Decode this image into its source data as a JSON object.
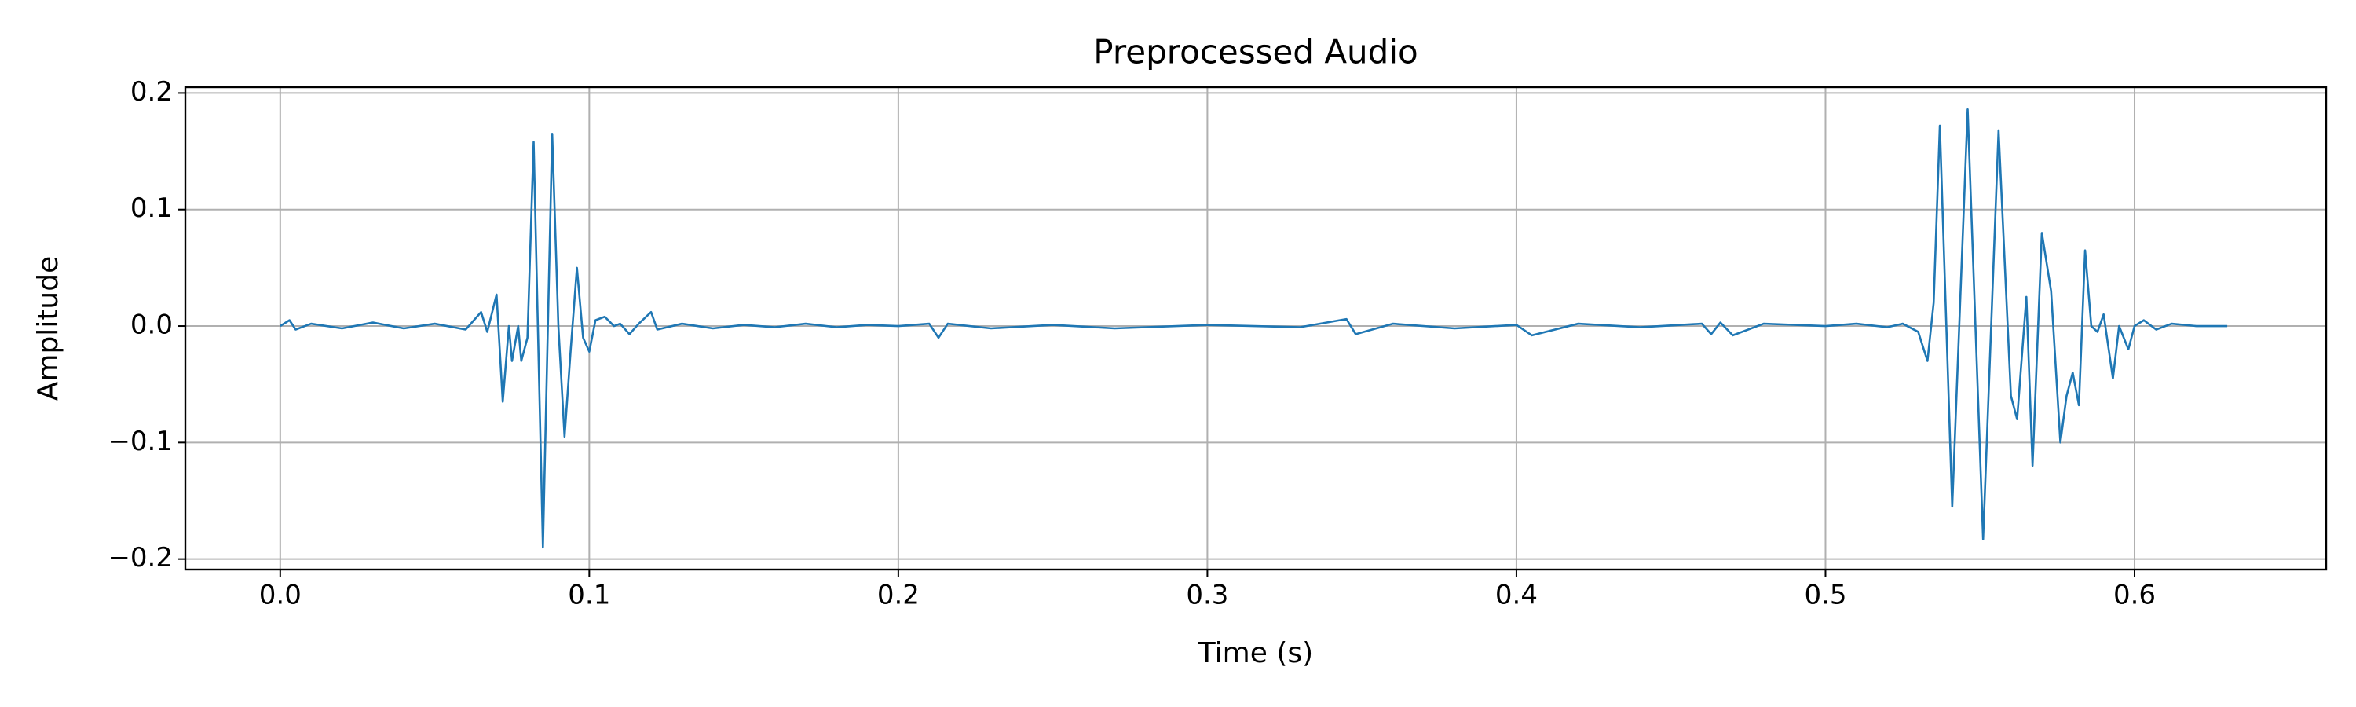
{
  "chart_data": {
    "type": "line",
    "title": "Preprocessed Audio",
    "xlabel": "Time (s)",
    "ylabel": "Amplitude",
    "color": "#1f77b4",
    "grid": true,
    "xlim": [
      -0.0307,
      0.662
    ],
    "ylim": [
      -0.209,
      0.205
    ],
    "xticks": [
      {
        "value": 0,
        "label": "0.0"
      },
      0.1,
      0.2,
      0.3,
      0.4,
      0.5,
      0.6
    ],
    "yticks": [
      {
        "value": -0.2,
        "label": "−0.2"
      },
      {
        "value": -0.1,
        "label": "−0.1"
      },
      {
        "value": 0,
        "label": "0.0"
      },
      0.1,
      0.2
    ],
    "x": [
      0.0,
      0.003,
      0.005,
      0.01,
      0.02,
      0.03,
      0.04,
      0.05,
      0.06,
      0.065,
      0.067,
      0.07,
      0.072,
      0.074,
      0.075,
      0.077,
      0.078,
      0.08,
      0.082,
      0.085,
      0.088,
      0.09,
      0.092,
      0.094,
      0.096,
      0.098,
      0.1,
      0.102,
      0.105,
      0.108,
      0.11,
      0.113,
      0.116,
      0.12,
      0.122,
      0.13,
      0.14,
      0.15,
      0.16,
      0.17,
      0.18,
      0.19,
      0.2,
      0.21,
      0.213,
      0.216,
      0.23,
      0.25,
      0.27,
      0.3,
      0.33,
      0.345,
      0.348,
      0.36,
      0.38,
      0.4,
      0.405,
      0.42,
      0.44,
      0.46,
      0.463,
      0.466,
      0.47,
      0.48,
      0.5,
      0.51,
      0.52,
      0.525,
      0.53,
      0.533,
      0.535,
      0.537,
      0.541,
      0.546,
      0.551,
      0.556,
      0.56,
      0.562,
      0.565,
      0.567,
      0.57,
      0.573,
      0.576,
      0.578,
      0.58,
      0.582,
      0.584,
      0.586,
      0.588,
      0.59,
      0.593,
      0.595,
      0.598,
      0.6,
      0.603,
      0.607,
      0.612,
      0.62,
      0.63
    ],
    "values": [
      0.0,
      0.005,
      -0.003,
      0.002,
      -0.002,
      0.003,
      -0.002,
      0.002,
      -0.003,
      0.012,
      -0.005,
      0.027,
      -0.065,
      0.0,
      -0.03,
      0.0,
      -0.03,
      -0.01,
      0.158,
      -0.19,
      0.165,
      0.0,
      -0.095,
      -0.02,
      0.05,
      -0.01,
      -0.022,
      0.005,
      0.008,
      0.0,
      0.002,
      -0.007,
      0.002,
      0.012,
      -0.003,
      0.002,
      -0.002,
      0.001,
      -0.001,
      0.002,
      -0.001,
      0.001,
      0.0,
      0.002,
      -0.01,
      0.002,
      -0.002,
      0.001,
      -0.002,
      0.001,
      -0.001,
      0.006,
      -0.007,
      0.002,
      -0.002,
      0.001,
      -0.008,
      0.002,
      -0.001,
      0.002,
      -0.007,
      0.003,
      -0.008,
      0.002,
      0.0,
      0.002,
      -0.001,
      0.002,
      -0.005,
      -0.03,
      0.02,
      0.172,
      -0.155,
      0.186,
      -0.183,
      0.168,
      -0.06,
      -0.08,
      0.025,
      -0.12,
      0.08,
      0.03,
      -0.1,
      -0.06,
      -0.04,
      -0.068,
      0.065,
      0.0,
      -0.005,
      0.01,
      -0.045,
      0.0,
      -0.02,
      0.0,
      0.005,
      -0.003,
      0.002,
      0.0,
      0.0
    ]
  }
}
